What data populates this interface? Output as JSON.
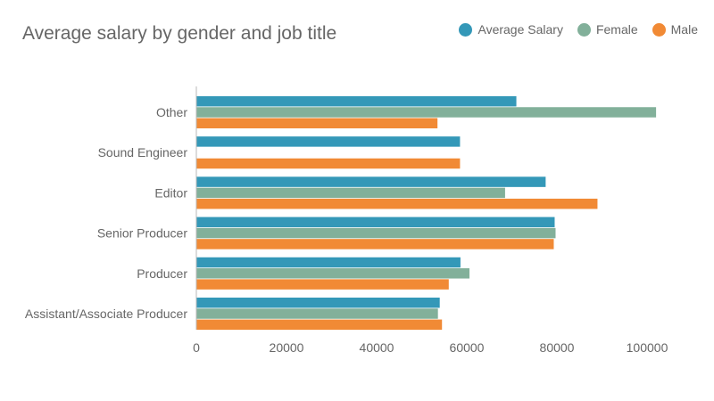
{
  "chart_data": {
    "type": "bar",
    "orientation": "horizontal",
    "title": "Average salary by gender and job title",
    "xlabel": "",
    "ylabel": "",
    "xlim": [
      0,
      110000
    ],
    "x_ticks": [
      "0",
      "20000",
      "40000",
      "60000",
      "80000",
      "100000"
    ],
    "x_tick_values": [
      0,
      20000,
      40000,
      60000,
      80000,
      100000
    ],
    "categories": [
      "Other",
      "Sound Engineer",
      "Editor",
      "Senior Producer",
      "Producer",
      "Assistant/Associate Producer"
    ],
    "series": [
      {
        "name": "Average Salary",
        "color": "#3498b8",
        "values": [
          71000,
          58500,
          77500,
          79500,
          58600,
          54000
        ]
      },
      {
        "name": "Female",
        "color": "#82b09a",
        "values": [
          102000,
          null,
          68500,
          79700,
          60600,
          53600
        ]
      },
      {
        "name": "Male",
        "color": "#f18a35",
        "values": [
          53500,
          58500,
          89000,
          79300,
          56000,
          54500
        ]
      }
    ],
    "legend_position": "top-right",
    "grid": false
  }
}
